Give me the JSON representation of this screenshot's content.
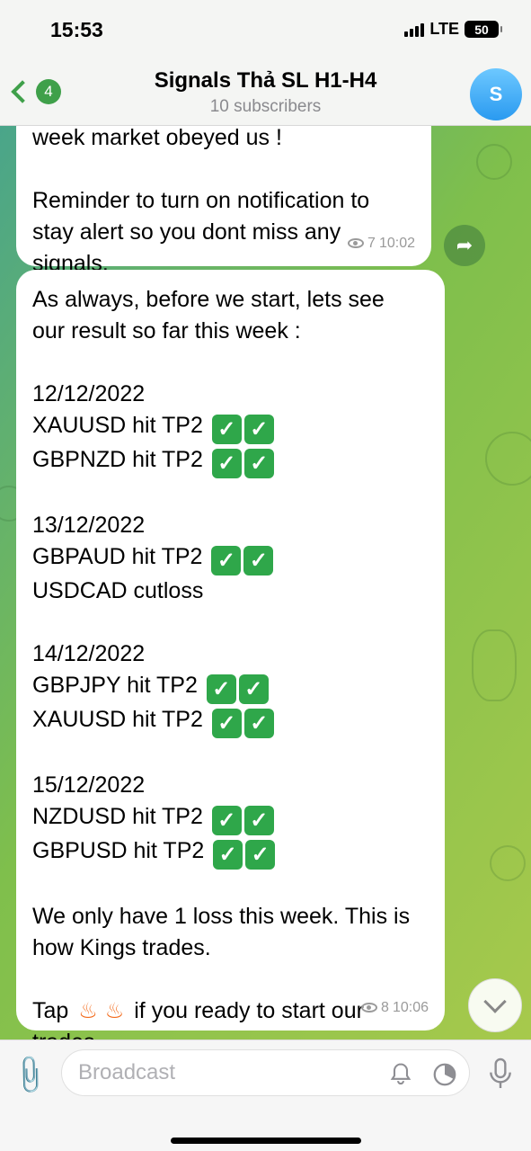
{
  "status": {
    "time": "15:53",
    "network": "LTE",
    "battery": "50"
  },
  "header": {
    "back_count": "4",
    "title": "Signals Thả SL H1-H4",
    "subtitle": "10 subscribers",
    "avatar_letter": "S"
  },
  "messages": [
    {
      "lines": [
        "week market obeyed us !",
        "",
        "Reminder to turn on notification to",
        "stay alert so you dont miss any",
        "signals."
      ],
      "views": "7",
      "time": "10:02"
    },
    {
      "lines": [
        "As always, before we start, lets see",
        "our result so far this week :",
        "",
        "12/12/2022",
        "XAUUSD hit TP2",
        "GBPNZD hit TP2",
        "",
        "13/12/2022",
        "GBPAUD hit TP2",
        "USDCAD cutloss",
        "",
        "14/12/2022",
        "GBPJPY hit TP2",
        "XAUUSD hit TP2",
        "",
        "15/12/2022",
        "NZDUSD hit TP2",
        "GBPUSD hit TP2",
        "",
        "We only have 1 loss this week. This is",
        "how Kings trades.",
        "",
        "Tap",
        "if you ready to start our",
        "trades."
      ],
      "views": "8",
      "time": "10:06"
    }
  ],
  "input": {
    "placeholder": "Broadcast"
  }
}
